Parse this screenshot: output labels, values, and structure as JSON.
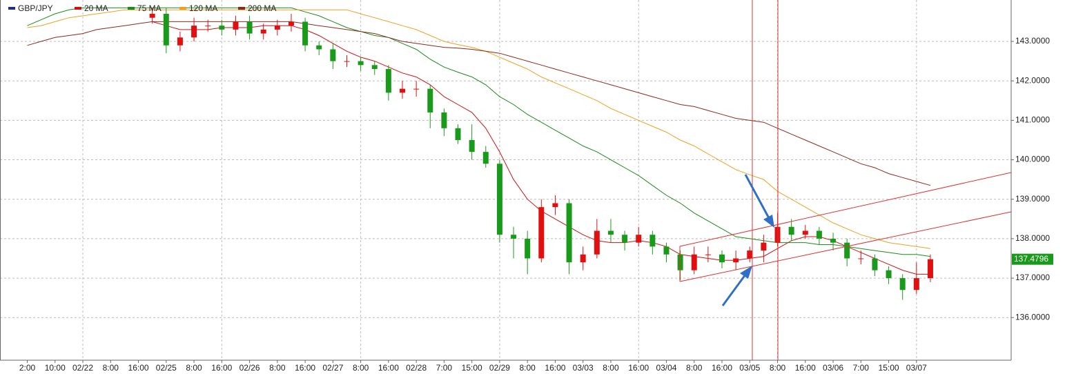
{
  "chart_data": {
    "type": "candlestick",
    "categories": [
      "2:00",
      null,
      "10:00",
      null,
      "02/22",
      null,
      "8:00",
      null,
      "16:00",
      null,
      "02/25",
      null,
      "8:00",
      null,
      "16:00",
      null,
      "02/26",
      null,
      "8:00",
      null,
      "16:00",
      null,
      "02/27",
      null,
      "8:00",
      null,
      "16:00",
      null,
      "02/28",
      null,
      "7:00",
      null,
      "15:00",
      null,
      "02/29",
      null,
      "8:00",
      null,
      "16:00",
      null,
      "03/03",
      null,
      "8:00",
      null,
      "16:00",
      null,
      "03/04",
      null,
      "8:00",
      null,
      "16:00",
      null,
      "03/05",
      null,
      "8:00",
      null,
      "16:00",
      null,
      "03/06",
      null,
      "7:00",
      null,
      "15:00",
      null,
      "03/07",
      null
    ],
    "series": [
      {
        "name": "GBP/JPY",
        "color": "#1f2f80",
        "up_color": "#e01010",
        "down_color": "#1a9a1a",
        "open": [
          null,
          null,
          null,
          null,
          null,
          null,
          null,
          null,
          null,
          143.6,
          143.7,
          142.9,
          143.1,
          143.4,
          143.4,
          143.3,
          143.5,
          143.2,
          143.3,
          143.4,
          143.5,
          142.9,
          142.8,
          142.5,
          142.5,
          142.4,
          142.3,
          141.7,
          141.8,
          141.8,
          141.2,
          140.8,
          140.5,
          140.2,
          139.9,
          138.1,
          138.0,
          137.5,
          138.8,
          138.9,
          137.4,
          137.6,
          138.2,
          138.1,
          137.9,
          138.1,
          137.8,
          137.6,
          137.2,
          137.6,
          137.6,
          137.4,
          137.5,
          137.7,
          137.9,
          138.3,
          138.1,
          138.2,
          138.0,
          137.9,
          137.5,
          137.5,
          137.2,
          137.0,
          136.7,
          137.0
        ],
        "high": [
          null,
          null,
          null,
          null,
          null,
          null,
          null,
          null,
          null,
          143.85,
          143.85,
          143.25,
          143.6,
          143.55,
          143.55,
          143.65,
          143.65,
          143.45,
          143.55,
          143.7,
          143.6,
          143.0,
          142.95,
          142.65,
          142.6,
          142.5,
          142.4,
          142.0,
          142.0,
          141.9,
          141.3,
          140.9,
          140.9,
          140.35,
          140.0,
          138.3,
          138.2,
          139.0,
          139.1,
          139.0,
          137.8,
          138.5,
          138.5,
          138.2,
          138.3,
          138.2,
          137.9,
          137.7,
          137.8,
          137.8,
          137.7,
          137.7,
          137.8,
          138.1,
          138.65,
          138.5,
          138.35,
          138.3,
          138.15,
          138.0,
          137.7,
          137.6,
          137.3,
          137.1,
          137.4,
          137.6
        ],
        "low": [
          null,
          null,
          null,
          null,
          null,
          null,
          null,
          null,
          null,
          143.45,
          142.7,
          142.75,
          143.0,
          143.25,
          143.15,
          143.15,
          143.05,
          143.05,
          143.15,
          143.25,
          142.75,
          142.65,
          142.3,
          142.35,
          142.25,
          142.15,
          141.5,
          141.55,
          141.6,
          140.8,
          140.6,
          140.4,
          140.0,
          139.8,
          137.9,
          137.5,
          137.1,
          137.4,
          138.6,
          137.1,
          137.2,
          137.5,
          137.9,
          137.7,
          137.8,
          137.6,
          137.4,
          136.95,
          137.1,
          137.4,
          137.25,
          137.2,
          137.4,
          137.4,
          137.8,
          137.95,
          138.0,
          137.85,
          137.7,
          137.3,
          137.35,
          137.05,
          136.85,
          136.45,
          136.6,
          136.9
        ],
        "close": [
          null,
          null,
          null,
          null,
          null,
          null,
          null,
          null,
          null,
          143.7,
          142.9,
          143.1,
          143.4,
          143.4,
          143.3,
          143.5,
          143.2,
          143.3,
          143.4,
          143.5,
          142.9,
          142.8,
          142.5,
          142.5,
          142.4,
          142.3,
          141.7,
          141.8,
          141.8,
          141.2,
          140.8,
          140.5,
          140.2,
          139.9,
          138.1,
          138.0,
          137.5,
          138.8,
          138.9,
          137.4,
          137.6,
          138.2,
          138.1,
          137.9,
          138.1,
          137.8,
          137.6,
          137.2,
          137.6,
          137.6,
          137.4,
          137.5,
          137.7,
          137.9,
          138.3,
          138.1,
          138.2,
          138.0,
          137.9,
          137.5,
          137.5,
          137.2,
          137.0,
          136.7,
          137.0,
          137.48
        ]
      },
      {
        "name": "20 MA",
        "color": "#d01010",
        "values": [
          null,
          null,
          null,
          null,
          null,
          null,
          null,
          null,
          null,
          143.5,
          143.4,
          143.3,
          143.3,
          143.3,
          143.35,
          143.35,
          143.35,
          143.4,
          143.4,
          143.4,
          143.3,
          143.15,
          142.95,
          142.75,
          142.6,
          142.5,
          142.35,
          142.2,
          142.1,
          141.9,
          141.6,
          141.4,
          141.2,
          140.8,
          140.2,
          139.5,
          139.0,
          138.7,
          138.5,
          138.3,
          138.1,
          137.95,
          137.9,
          137.9,
          137.95,
          137.9,
          137.8,
          137.6,
          137.55,
          137.5,
          137.45,
          137.45,
          137.5,
          137.55,
          137.75,
          137.95,
          138.05,
          138.05,
          137.95,
          137.8,
          137.65,
          137.5,
          137.35,
          137.2,
          137.1,
          137.1
        ]
      },
      {
        "name": "75 MA",
        "color": "#1a8a1a",
        "values": [
          143.4,
          143.55,
          143.7,
          143.8,
          143.85,
          143.85,
          143.85,
          143.85,
          143.85,
          143.85,
          143.85,
          143.85,
          143.85,
          143.85,
          143.85,
          143.85,
          143.85,
          143.85,
          143.85,
          143.85,
          143.75,
          143.65,
          143.5,
          143.35,
          143.25,
          143.15,
          143.1,
          142.95,
          142.8,
          142.55,
          142.35,
          142.22,
          142.1,
          141.9,
          141.6,
          141.4,
          141.15,
          140.95,
          140.75,
          140.55,
          140.35,
          140.2,
          140.0,
          139.8,
          139.6,
          139.35,
          139.1,
          138.9,
          138.65,
          138.45,
          138.25,
          138.05,
          138.0,
          137.95,
          137.9,
          137.9,
          137.9,
          137.85,
          137.85,
          137.8,
          137.75,
          137.7,
          137.65,
          137.6,
          137.6,
          137.55
        ]
      },
      {
        "name": "120 MA",
        "color": "#f0a020",
        "values": [
          143.35,
          143.4,
          143.5,
          143.6,
          143.65,
          143.7,
          143.75,
          143.8,
          143.8,
          143.8,
          143.8,
          143.8,
          143.8,
          143.8,
          143.8,
          143.8,
          143.8,
          143.8,
          143.8,
          143.8,
          143.8,
          143.8,
          143.8,
          143.8,
          143.7,
          143.6,
          143.5,
          143.4,
          143.3,
          143.15,
          143.0,
          142.92,
          142.85,
          142.75,
          142.6,
          142.45,
          142.3,
          142.1,
          141.95,
          141.8,
          141.65,
          141.5,
          141.3,
          141.15,
          141.0,
          140.85,
          140.7,
          140.5,
          140.35,
          140.15,
          139.95,
          139.75,
          139.62,
          139.5,
          139.2,
          139.0,
          138.8,
          138.6,
          138.4,
          138.25,
          138.1,
          138.0,
          137.9,
          137.85,
          137.8,
          137.75
        ]
      },
      {
        "name": "200 MA",
        "color": "#8b2a1a",
        "values": [
          142.9,
          143.0,
          143.1,
          143.15,
          143.2,
          143.3,
          143.35,
          143.4,
          143.45,
          143.5,
          143.5,
          143.5,
          143.5,
          143.5,
          143.5,
          143.5,
          143.5,
          143.5,
          143.5,
          143.5,
          143.45,
          143.4,
          143.35,
          143.3,
          143.25,
          143.2,
          143.1,
          143.0,
          142.95,
          142.9,
          142.85,
          142.83,
          142.8,
          142.75,
          142.7,
          142.6,
          142.5,
          142.4,
          142.3,
          142.2,
          142.1,
          142.0,
          141.9,
          141.8,
          141.7,
          141.6,
          141.5,
          141.4,
          141.35,
          141.25,
          141.15,
          141.05,
          141.0,
          140.95,
          140.8,
          140.65,
          140.5,
          140.35,
          140.2,
          140.05,
          139.9,
          139.8,
          139.65,
          139.55,
          139.45,
          139.35
        ]
      }
    ],
    "ylim": [
      134.92,
      144.05
    ],
    "yticks": [
      {
        "value": 136,
        "label": "136.0000"
      },
      {
        "value": 137,
        "label": "137.0000"
      },
      {
        "value": 138,
        "label": "138.0000"
      },
      {
        "value": 139,
        "label": "139.0000"
      },
      {
        "value": 140,
        "label": "140.0000"
      },
      {
        "value": 141,
        "label": "141.0000"
      },
      {
        "value": 142,
        "label": "142.0000"
      },
      {
        "value": 143,
        "label": "143.0000"
      }
    ],
    "grid": true,
    "last_price": 137.4796
  }
}
